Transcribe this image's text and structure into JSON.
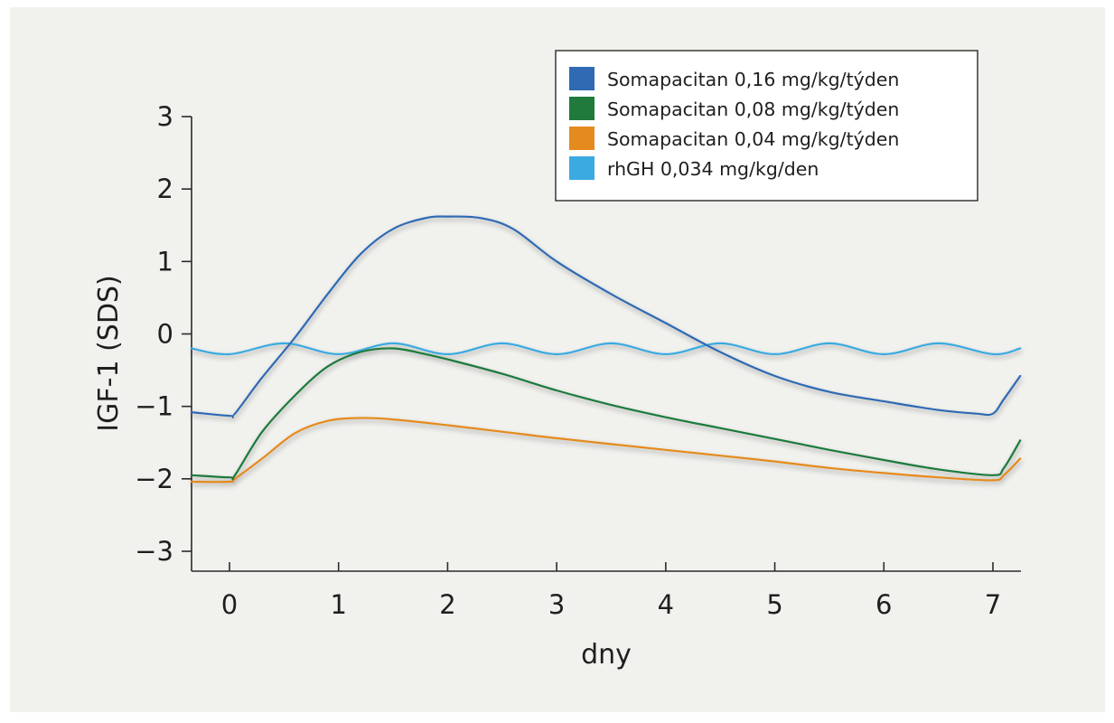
{
  "chart_data": {
    "type": "line",
    "xlabel": "dny",
    "ylabel": "IGF-1 (SDS)",
    "xlim": [
      -0.35,
      7.25
    ],
    "ylim": [
      -3.2,
      3
    ],
    "x_ticks": [
      0,
      1,
      2,
      3,
      4,
      5,
      6,
      7
    ],
    "x_tick_labels": [
      "0",
      "1",
      "2",
      "3",
      "4",
      "5",
      "6",
      "7"
    ],
    "y_ticks": [
      3,
      2,
      1,
      0,
      -1,
      -2,
      -3
    ],
    "y_tick_labels": [
      "3",
      "2",
      "1",
      "0",
      "−1",
      "−2",
      "−3"
    ],
    "grid": false,
    "legend_position": "top-right",
    "series": [
      {
        "name": "Somapacitan 0,16 mg/kg/týden",
        "color": "#2f6ab3",
        "x": [
          -0.35,
          0.0,
          0.05,
          0.3,
          0.6,
          0.9,
          1.2,
          1.5,
          1.8,
          2.0,
          2.3,
          2.6,
          3.0,
          3.5,
          4.0,
          4.5,
          5.0,
          5.5,
          6.0,
          6.5,
          6.85,
          7.0,
          7.1,
          7.25
        ],
        "y": [
          -1.08,
          -1.13,
          -1.1,
          -0.6,
          -0.05,
          0.55,
          1.1,
          1.45,
          1.6,
          1.62,
          1.6,
          1.45,
          1.0,
          0.55,
          0.15,
          -0.25,
          -0.58,
          -0.8,
          -0.93,
          -1.05,
          -1.1,
          -1.1,
          -0.9,
          -0.58
        ]
      },
      {
        "name": "Somapacitan 0,08 mg/kg/týden",
        "color": "#1f7a3c",
        "x": [
          -0.35,
          0.0,
          0.05,
          0.3,
          0.6,
          0.9,
          1.2,
          1.5,
          1.8,
          2.0,
          2.5,
          3.0,
          3.5,
          4.0,
          4.5,
          5.0,
          5.5,
          6.0,
          6.5,
          7.0,
          7.1,
          7.25
        ],
        "y": [
          -1.95,
          -1.98,
          -1.95,
          -1.35,
          -0.85,
          -0.45,
          -0.25,
          -0.2,
          -0.28,
          -0.35,
          -0.55,
          -0.78,
          -0.98,
          -1.15,
          -1.3,
          -1.45,
          -1.6,
          -1.74,
          -1.87,
          -1.95,
          -1.85,
          -1.47
        ]
      },
      {
        "name": "Somapacitan 0,04 mg/kg/týden",
        "color": "#e58a1f",
        "x": [
          -0.35,
          0.0,
          0.05,
          0.3,
          0.6,
          0.9,
          1.2,
          1.5,
          2.0,
          2.5,
          3.0,
          3.5,
          4.0,
          4.5,
          5.0,
          5.5,
          6.0,
          6.5,
          7.0,
          7.1,
          7.25
        ],
        "y": [
          -2.04,
          -2.04,
          -2.0,
          -1.72,
          -1.37,
          -1.2,
          -1.16,
          -1.18,
          -1.26,
          -1.35,
          -1.44,
          -1.52,
          -1.6,
          -1.68,
          -1.76,
          -1.85,
          -1.92,
          -1.98,
          -2.02,
          -1.95,
          -1.72
        ]
      },
      {
        "name": "rhGH 0,034 mg/kg/den",
        "color": "#3aaae0",
        "x": [
          -0.35,
          0.0,
          0.5,
          1.0,
          1.5,
          2.0,
          2.5,
          3.0,
          3.5,
          4.0,
          4.5,
          5.0,
          5.5,
          6.0,
          6.5,
          7.0,
          7.25
        ],
        "y": [
          -0.2,
          -0.28,
          -0.13,
          -0.28,
          -0.13,
          -0.28,
          -0.13,
          -0.28,
          -0.13,
          -0.28,
          -0.13,
          -0.28,
          -0.13,
          -0.28,
          -0.13,
          -0.28,
          -0.2
        ]
      }
    ]
  }
}
